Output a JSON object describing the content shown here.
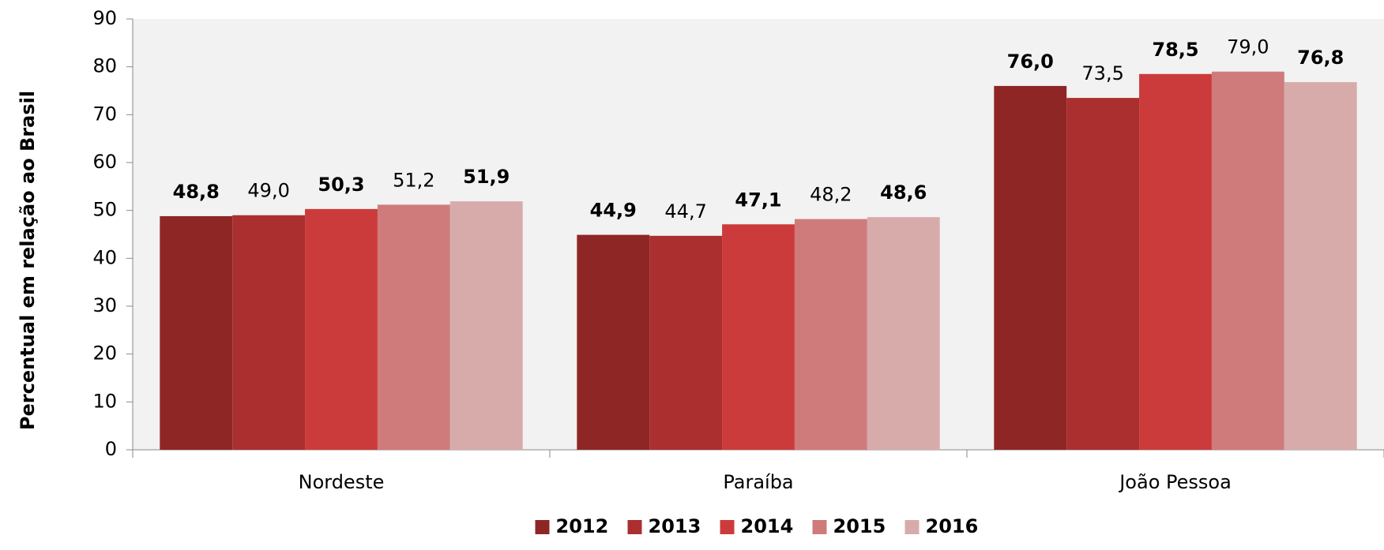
{
  "chart_data": {
    "type": "bar",
    "y_label": "Percentual em relação ao Brasil",
    "categories": [
      "Nordeste",
      "Paraíba",
      "João Pessoa"
    ],
    "series": [
      {
        "name": "2012",
        "color": "#8e2626",
        "values": [
          48.8,
          44.9,
          76.0
        ],
        "value_labels": [
          "48,8",
          "44,9",
          "76,0"
        ]
      },
      {
        "name": "2013",
        "color": "#ab2f2f",
        "values": [
          49.0,
          44.7,
          73.5
        ],
        "value_labels": [
          "49,0",
          "44,7",
          "73,5"
        ]
      },
      {
        "name": "2014",
        "color": "#cc3b3b",
        "values": [
          50.3,
          47.1,
          78.5
        ],
        "value_labels": [
          "50,3",
          "47,1",
          "78,5"
        ]
      },
      {
        "name": "2015",
        "color": "#cf7b7b",
        "values": [
          51.2,
          48.2,
          79.0
        ],
        "value_labels": [
          "51,2",
          "48,2",
          "79,0"
        ]
      },
      {
        "name": "2016",
        "color": "#d8abab",
        "values": [
          51.9,
          48.6,
          76.8
        ],
        "value_labels": [
          "51,9",
          "48,6",
          "76,8"
        ]
      }
    ],
    "ylim": [
      0,
      90
    ],
    "yticks": [
      0,
      10,
      20,
      30,
      40,
      50,
      60,
      70,
      80,
      90
    ]
  }
}
